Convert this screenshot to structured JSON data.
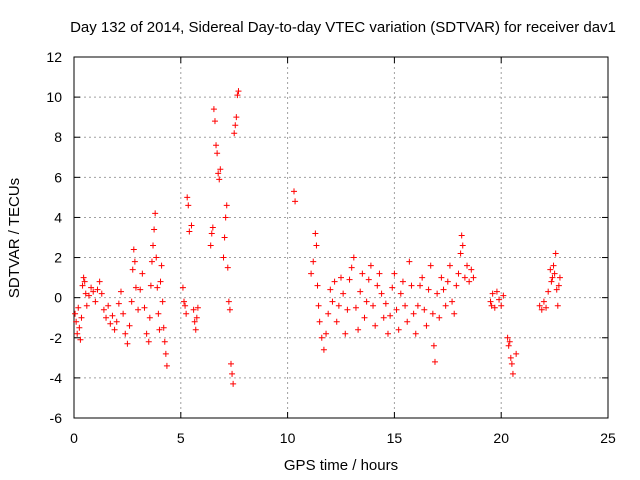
{
  "chart_data": {
    "type": "scatter",
    "title": "Day 132 of 2014, Sidereal Day-to-day VTEC variation (SDTVAR) for receiver dav1",
    "xlabel": "GPS time / hours",
    "ylabel": "SDTVAR / TECUs",
    "xlim": [
      0,
      25
    ],
    "ylim": [
      -6,
      12
    ],
    "x_ticks": [
      0,
      5,
      10,
      15,
      20,
      25
    ],
    "y_ticks": [
      -6,
      -4,
      -2,
      0,
      2,
      4,
      6,
      8,
      10,
      12
    ],
    "x_tick_labels": [
      "0",
      "5",
      "10",
      "15",
      "20",
      "25"
    ],
    "y_tick_labels": [
      "-6",
      "-4",
      "-2",
      "0",
      "2",
      "4",
      "6",
      "8",
      "10",
      "12"
    ],
    "grid": true,
    "marker": "+",
    "marker_color": "#ff0000",
    "series": [
      {
        "name": "SDTVAR",
        "points": [
          [
            0.05,
            -0.8
          ],
          [
            0.1,
            -1.2
          ],
          [
            0.15,
            -1.8
          ],
          [
            0.2,
            -0.5
          ],
          [
            0.25,
            -1.5
          ],
          [
            0.3,
            -2.1
          ],
          [
            0.35,
            -1.0
          ],
          [
            0.4,
            0.6
          ],
          [
            0.45,
            1.0
          ],
          [
            0.5,
            0.8
          ],
          [
            0.55,
            0.2
          ],
          [
            0.6,
            -0.4
          ],
          [
            0.7,
            0.1
          ],
          [
            0.8,
            0.5
          ],
          [
            0.9,
            0.3
          ],
          [
            1.0,
            -0.2
          ],
          [
            1.1,
            0.4
          ],
          [
            1.2,
            0.8
          ],
          [
            1.3,
            0.2
          ],
          [
            1.4,
            -0.6
          ],
          [
            1.5,
            -1.0
          ],
          [
            1.6,
            -0.4
          ],
          [
            1.7,
            -1.3
          ],
          [
            1.8,
            -0.9
          ],
          [
            1.9,
            -1.6
          ],
          [
            2.0,
            -1.2
          ],
          [
            2.1,
            -0.3
          ],
          [
            2.2,
            0.3
          ],
          [
            2.3,
            -0.8
          ],
          [
            2.4,
            -1.8
          ],
          [
            2.5,
            -2.3
          ],
          [
            2.6,
            -1.4
          ],
          [
            2.7,
            -0.2
          ],
          [
            2.75,
            1.4
          ],
          [
            2.8,
            2.4
          ],
          [
            2.85,
            1.8
          ],
          [
            2.9,
            0.5
          ],
          [
            3.0,
            -0.6
          ],
          [
            3.1,
            0.4
          ],
          [
            3.2,
            1.2
          ],
          [
            3.3,
            -0.5
          ],
          [
            3.4,
            -1.8
          ],
          [
            3.5,
            -2.2
          ],
          [
            3.55,
            -1.0
          ],
          [
            3.6,
            0.6
          ],
          [
            3.65,
            1.8
          ],
          [
            3.7,
            2.6
          ],
          [
            3.75,
            3.4
          ],
          [
            3.8,
            4.2
          ],
          [
            3.85,
            2.0
          ],
          [
            3.9,
            0.5
          ],
          [
            3.95,
            -0.8
          ],
          [
            4.0,
            -1.6
          ],
          [
            4.05,
            0.8
          ],
          [
            4.1,
            1.6
          ],
          [
            4.15,
            -0.2
          ],
          [
            4.2,
            -1.5
          ],
          [
            4.25,
            -2.2
          ],
          [
            4.3,
            -2.8
          ],
          [
            4.35,
            -3.4
          ],
          [
            5.1,
            0.5
          ],
          [
            5.15,
            -0.2
          ],
          [
            5.2,
            -0.4
          ],
          [
            5.25,
            -0.8
          ],
          [
            5.3,
            5.0
          ],
          [
            5.35,
            4.6
          ],
          [
            5.4,
            3.3
          ],
          [
            5.5,
            3.6
          ],
          [
            5.6,
            -0.6
          ],
          [
            5.65,
            -1.2
          ],
          [
            5.7,
            -1.6
          ],
          [
            5.75,
            -1.0
          ],
          [
            5.8,
            -0.5
          ],
          [
            6.4,
            2.6
          ],
          [
            6.45,
            3.2
          ],
          [
            6.5,
            3.5
          ],
          [
            6.55,
            9.4
          ],
          [
            6.6,
            8.8
          ],
          [
            6.65,
            7.6
          ],
          [
            6.7,
            7.2
          ],
          [
            6.75,
            6.2
          ],
          [
            6.8,
            5.9
          ],
          [
            6.85,
            6.4
          ],
          [
            7.0,
            2.0
          ],
          [
            7.05,
            3.0
          ],
          [
            7.1,
            4.0
          ],
          [
            7.15,
            4.6
          ],
          [
            7.2,
            1.5
          ],
          [
            7.25,
            -0.2
          ],
          [
            7.3,
            -0.6
          ],
          [
            7.35,
            -3.3
          ],
          [
            7.4,
            -3.8
          ],
          [
            7.45,
            -4.3
          ],
          [
            7.5,
            8.2
          ],
          [
            7.55,
            8.6
          ],
          [
            7.6,
            9.0
          ],
          [
            7.65,
            10.1
          ],
          [
            7.7,
            10.3
          ],
          [
            10.3,
            5.3
          ],
          [
            10.35,
            4.8
          ],
          [
            11.1,
            1.2
          ],
          [
            11.2,
            1.8
          ],
          [
            11.3,
            3.2
          ],
          [
            11.35,
            2.6
          ],
          [
            11.4,
            0.6
          ],
          [
            11.45,
            -0.4
          ],
          [
            11.5,
            -1.2
          ],
          [
            11.6,
            -2.0
          ],
          [
            11.7,
            -2.6
          ],
          [
            11.8,
            -1.8
          ],
          [
            11.9,
            -0.8
          ],
          [
            12.0,
            0.4
          ],
          [
            12.1,
            -0.2
          ],
          [
            12.2,
            0.8
          ],
          [
            12.3,
            -1.2
          ],
          [
            12.4,
            -0.4
          ],
          [
            12.5,
            1.0
          ],
          [
            12.6,
            0.2
          ],
          [
            12.7,
            -1.8
          ],
          [
            12.8,
            -0.6
          ],
          [
            12.9,
            0.9
          ],
          [
            13.0,
            1.5
          ],
          [
            13.1,
            2.0
          ],
          [
            13.2,
            -0.5
          ],
          [
            13.3,
            -1.6
          ],
          [
            13.4,
            0.3
          ],
          [
            13.5,
            1.2
          ],
          [
            13.6,
            -1.0
          ],
          [
            13.7,
            -0.2
          ],
          [
            13.8,
            0.9
          ],
          [
            13.9,
            1.6
          ],
          [
            14.0,
            -0.4
          ],
          [
            14.1,
            -1.4
          ],
          [
            14.2,
            0.6
          ],
          [
            14.3,
            1.2
          ],
          [
            14.4,
            0.2
          ],
          [
            14.5,
            -1.0
          ],
          [
            14.6,
            -0.3
          ],
          [
            14.7,
            -1.8
          ],
          [
            14.8,
            -0.9
          ],
          [
            14.9,
            0.5
          ],
          [
            15.0,
            1.2
          ],
          [
            15.1,
            -0.6
          ],
          [
            15.2,
            -1.6
          ],
          [
            15.3,
            0.2
          ],
          [
            15.4,
            0.8
          ],
          [
            15.5,
            -0.4
          ],
          [
            15.6,
            -1.2
          ],
          [
            15.7,
            1.8
          ],
          [
            15.8,
            0.6
          ],
          [
            15.9,
            -0.8
          ],
          [
            16.0,
            -1.8
          ],
          [
            16.1,
            -0.4
          ],
          [
            16.2,
            0.6
          ],
          [
            16.3,
            1.0
          ],
          [
            16.4,
            -0.6
          ],
          [
            16.5,
            -1.4
          ],
          [
            16.6,
            0.4
          ],
          [
            16.7,
            1.6
          ],
          [
            16.8,
            -0.8
          ],
          [
            16.85,
            -2.4
          ],
          [
            16.9,
            -3.2
          ],
          [
            17.0,
            0.2
          ],
          [
            17.1,
            -1.0
          ],
          [
            17.2,
            1.0
          ],
          [
            17.3,
            0.4
          ],
          [
            17.4,
            -0.4
          ],
          [
            17.5,
            0.8
          ],
          [
            17.6,
            1.6
          ],
          [
            17.7,
            -0.2
          ],
          [
            17.8,
            -0.8
          ],
          [
            17.9,
            0.6
          ],
          [
            18.0,
            1.2
          ],
          [
            18.1,
            2.2
          ],
          [
            18.15,
            3.1
          ],
          [
            18.2,
            2.6
          ],
          [
            18.3,
            1.0
          ],
          [
            18.4,
            1.6
          ],
          [
            18.5,
            0.8
          ],
          [
            18.6,
            1.4
          ],
          [
            18.7,
            1.0
          ],
          [
            19.5,
            -0.2
          ],
          [
            19.55,
            -0.4
          ],
          [
            19.6,
            0.2
          ],
          [
            19.7,
            -0.5
          ],
          [
            19.8,
            0.3
          ],
          [
            19.9,
            -0.1
          ],
          [
            20.0,
            -0.4
          ],
          [
            20.1,
            0.1
          ],
          [
            20.3,
            -2.0
          ],
          [
            20.35,
            -2.4
          ],
          [
            20.4,
            -2.2
          ],
          [
            20.45,
            -3.0
          ],
          [
            20.5,
            -3.3
          ],
          [
            20.55,
            -3.8
          ],
          [
            20.7,
            -2.8
          ],
          [
            21.8,
            -0.4
          ],
          [
            21.9,
            -0.6
          ],
          [
            22.0,
            -0.2
          ],
          [
            22.1,
            -0.5
          ],
          [
            22.2,
            0.3
          ],
          [
            22.3,
            1.4
          ],
          [
            22.35,
            0.8
          ],
          [
            22.4,
            1.0
          ],
          [
            22.45,
            1.6
          ],
          [
            22.5,
            1.2
          ],
          [
            22.55,
            2.2
          ],
          [
            22.6,
            0.4
          ],
          [
            22.65,
            -0.4
          ],
          [
            22.7,
            0.6
          ],
          [
            22.75,
            1.0
          ]
        ]
      }
    ]
  }
}
